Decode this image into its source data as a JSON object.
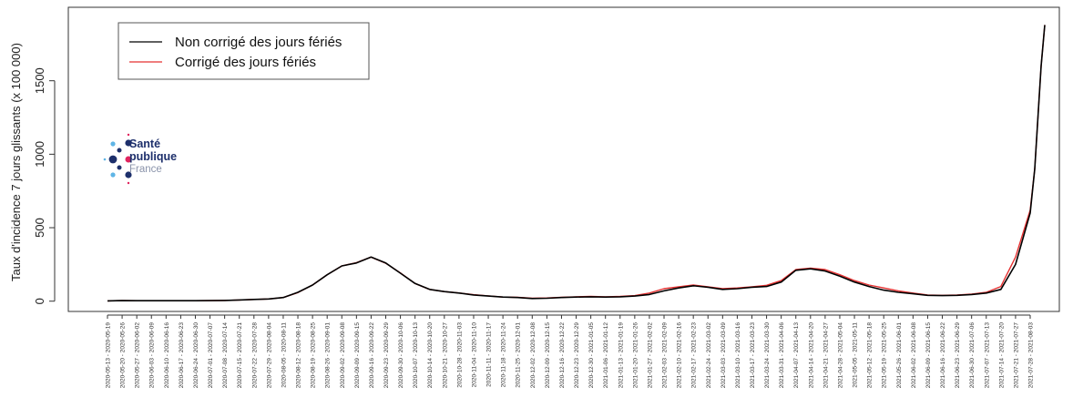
{
  "chart_data": {
    "type": "line",
    "title": "",
    "xlabel": "",
    "ylabel": "Taux d'incidence 7 jours glissants (x 100 000)",
    "ylim": [
      -70,
      2000
    ],
    "yticks": [
      0,
      500,
      1000,
      1500
    ],
    "categories": [
      "2020-05-13 - 2020-05-19",
      "2020-05-20 - 2020-05-26",
      "2020-05-27 - 2020-06-02",
      "2020-06-03 - 2020-06-09",
      "2020-06-10 - 2020-06-16",
      "2020-06-17 - 2020-06-23",
      "2020-06-24 - 2020-06-30",
      "2020-07-01 - 2020-07-07",
      "2020-07-08 - 2020-07-14",
      "2020-07-15 - 2020-07-21",
      "2020-07-22 - 2020-07-28",
      "2020-07-29 - 2020-08-04",
      "2020-08-05 - 2020-08-11",
      "2020-08-12 - 2020-08-18",
      "2020-08-19 - 2020-08-25",
      "2020-08-26 - 2020-09-01",
      "2020-09-02 - 2020-09-08",
      "2020-09-09 - 2020-09-15",
      "2020-09-16 - 2020-09-22",
      "2020-09-23 - 2020-09-29",
      "2020-09-30 - 2020-10-06",
      "2020-10-07 - 2020-10-13",
      "2020-10-14 - 2020-10-20",
      "2020-10-21 - 2020-10-27",
      "2020-10-28 - 2020-11-03",
      "2020-11-04 - 2020-11-10",
      "2020-11-11 - 2020-11-17",
      "2020-11-18 - 2020-11-24",
      "2020-11-25 - 2020-12-01",
      "2020-12-02 - 2020-12-08",
      "2020-12-09 - 2020-12-15",
      "2020-12-16 - 2020-12-22",
      "2020-12-23 - 2020-12-29",
      "2020-12-30 - 2021-01-05",
      "2021-01-06 - 2021-01-12",
      "2021-01-13 - 2021-01-19",
      "2021-01-20 - 2021-01-26",
      "2021-01-27 - 2021-02-02",
      "2021-02-03 - 2021-02-09",
      "2021-02-10 - 2021-02-16",
      "2021-02-17 - 2021-02-23",
      "2021-02-24 - 2021-03-02",
      "2021-03-03 - 2021-03-09",
      "2021-03-10 - 2021-03-16",
      "2021-03-17 - 2021-03-23",
      "2021-03-24 - 2021-03-30",
      "2021-03-31 - 2021-04-06",
      "2021-04-07 - 2021-04-13",
      "2021-04-14 - 2021-04-20",
      "2021-04-21 - 2021-04-27",
      "2021-04-28 - 2021-05-04",
      "2021-05-05 - 2021-05-11",
      "2021-05-12 - 2021-05-18",
      "2021-05-19 - 2021-05-25",
      "2021-05-26 - 2021-06-01",
      "2021-06-02 - 2021-06-08",
      "2021-06-09 - 2021-06-15",
      "2021-06-16 - 2021-06-22",
      "2021-06-23 - 2021-06-29",
      "2021-06-30 - 2021-07-06",
      "2021-07-07 - 2021-07-13",
      "2021-07-14 - 2021-07-20",
      "2021-07-21 - 2021-07-27",
      "2021-07-28 - 2021-08-03"
    ],
    "series": [
      {
        "name": "Non corrigé des jours fériés",
        "color": "#000000",
        "values": [
          2,
          4,
          3,
          3,
          3,
          3,
          3,
          4,
          5,
          8,
          12,
          15,
          25,
          60,
          110,
          180,
          240,
          260,
          300,
          260,
          190,
          120,
          80,
          65,
          55,
          42,
          35,
          28,
          25,
          18,
          20,
          25,
          28,
          30,
          28,
          30,
          35,
          45,
          70,
          90,
          105,
          95,
          80,
          85,
          95,
          100,
          130,
          210,
          220,
          205,
          170,
          130,
          100,
          75,
          60,
          50,
          40,
          38,
          40,
          45,
          55,
          80,
          250,
          600
        ],
        "peak_end": 1880
      },
      {
        "name": "Corrigé des jours fériés",
        "color": "#e53030",
        "values": [
          2,
          4,
          3,
          3,
          3,
          3,
          3,
          4,
          5,
          8,
          12,
          15,
          25,
          58,
          110,
          180,
          240,
          262,
          300,
          258,
          192,
          120,
          80,
          65,
          56,
          44,
          36,
          28,
          26,
          20,
          22,
          26,
          30,
          32,
          30,
          32,
          38,
          55,
          85,
          98,
          110,
          98,
          85,
          90,
          98,
          108,
          140,
          215,
          225,
          215,
          180,
          140,
          110,
          90,
          70,
          55,
          42,
          40,
          42,
          48,
          60,
          100,
          300,
          620
        ],
        "peak_end": 1880
      }
    ],
    "legend_position": "top-left",
    "grid": false
  },
  "logo": {
    "line1": "Santé",
    "line2": "publique",
    "line3": "France",
    "colors": {
      "navy": "#1d2f6b",
      "light_blue": "#5fb5e6",
      "pink": "#e0245e"
    }
  }
}
